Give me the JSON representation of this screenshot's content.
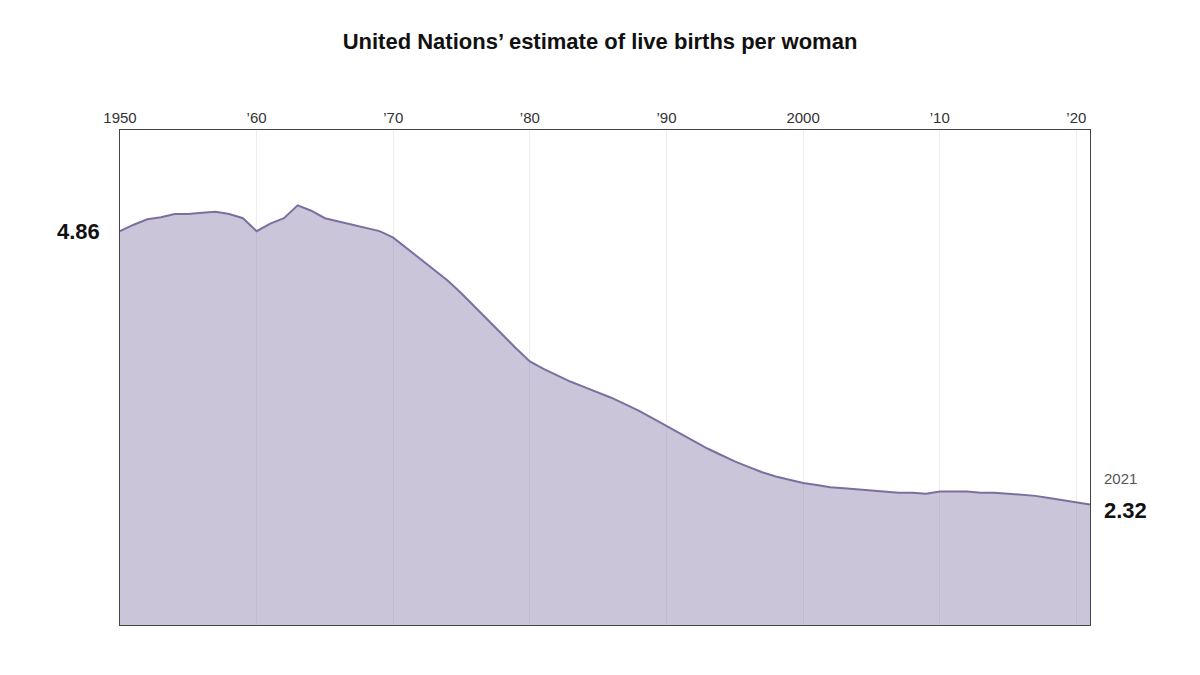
{
  "chart_data": {
    "type": "area",
    "title": "United Nations’ estimate of live births per woman",
    "color": "#7b6fa0",
    "x": [
      1950,
      1951,
      1952,
      1953,
      1954,
      1955,
      1956,
      1957,
      1958,
      1959,
      1960,
      1961,
      1962,
      1963,
      1964,
      1965,
      1966,
      1967,
      1968,
      1969,
      1970,
      1971,
      1972,
      1973,
      1974,
      1975,
      1976,
      1977,
      1978,
      1979,
      1980,
      1981,
      1982,
      1983,
      1984,
      1985,
      1986,
      1987,
      1988,
      1989,
      1990,
      1991,
      1992,
      1993,
      1994,
      1995,
      1996,
      1997,
      1998,
      1999,
      2000,
      2001,
      2002,
      2003,
      2004,
      2005,
      2006,
      2007,
      2008,
      2009,
      2010,
      2011,
      2012,
      2013,
      2014,
      2015,
      2016,
      2017,
      2018,
      2019,
      2020,
      2021
    ],
    "values": [
      4.86,
      4.92,
      4.97,
      4.99,
      5.02,
      5.02,
      5.03,
      5.04,
      5.02,
      4.98,
      4.86,
      4.93,
      4.98,
      5.1,
      5.05,
      4.98,
      4.95,
      4.92,
      4.89,
      4.86,
      4.8,
      4.7,
      4.6,
      4.5,
      4.4,
      4.28,
      4.15,
      4.02,
      3.9,
      3.77,
      3.65,
      3.58,
      3.52,
      3.46,
      3.41,
      3.36,
      3.31,
      3.25,
      3.19,
      3.12,
      3.05,
      2.98,
      2.91,
      2.84,
      2.78,
      2.72,
      2.67,
      2.62,
      2.58,
      2.55,
      2.52,
      2.5,
      2.48,
      2.47,
      2.46,
      2.45,
      2.44,
      2.43,
      2.43,
      2.42,
      2.44,
      2.44,
      2.44,
      2.43,
      2.43,
      2.42,
      2.41,
      2.4,
      2.38,
      2.36,
      2.34,
      2.32
    ],
    "xlim": [
      1950,
      2021
    ],
    "xticks": [
      1950,
      {
        "value": 1960,
        "label": "’60"
      },
      {
        "value": 1970,
        "label": "’70"
      },
      {
        "value": 1980,
        "label": "’80"
      },
      {
        "value": 1990,
        "label": "’90"
      },
      2000,
      {
        "value": 2010,
        "label": "’10"
      },
      {
        "value": 2020,
        "label": "’20"
      }
    ],
    "ylim": [
      1.2,
      5.8
    ],
    "yticks": [],
    "tick_labels": "x",
    "grid": true,
    "annotations": [
      {
        "text": "4.86",
        "x": 1950,
        "y": 4.86
      },
      {
        "text": "2021",
        "x": 2021,
        "y": 2.32
      },
      {
        "text": "2.32",
        "x": 2021,
        "y": 2.32
      }
    ]
  }
}
